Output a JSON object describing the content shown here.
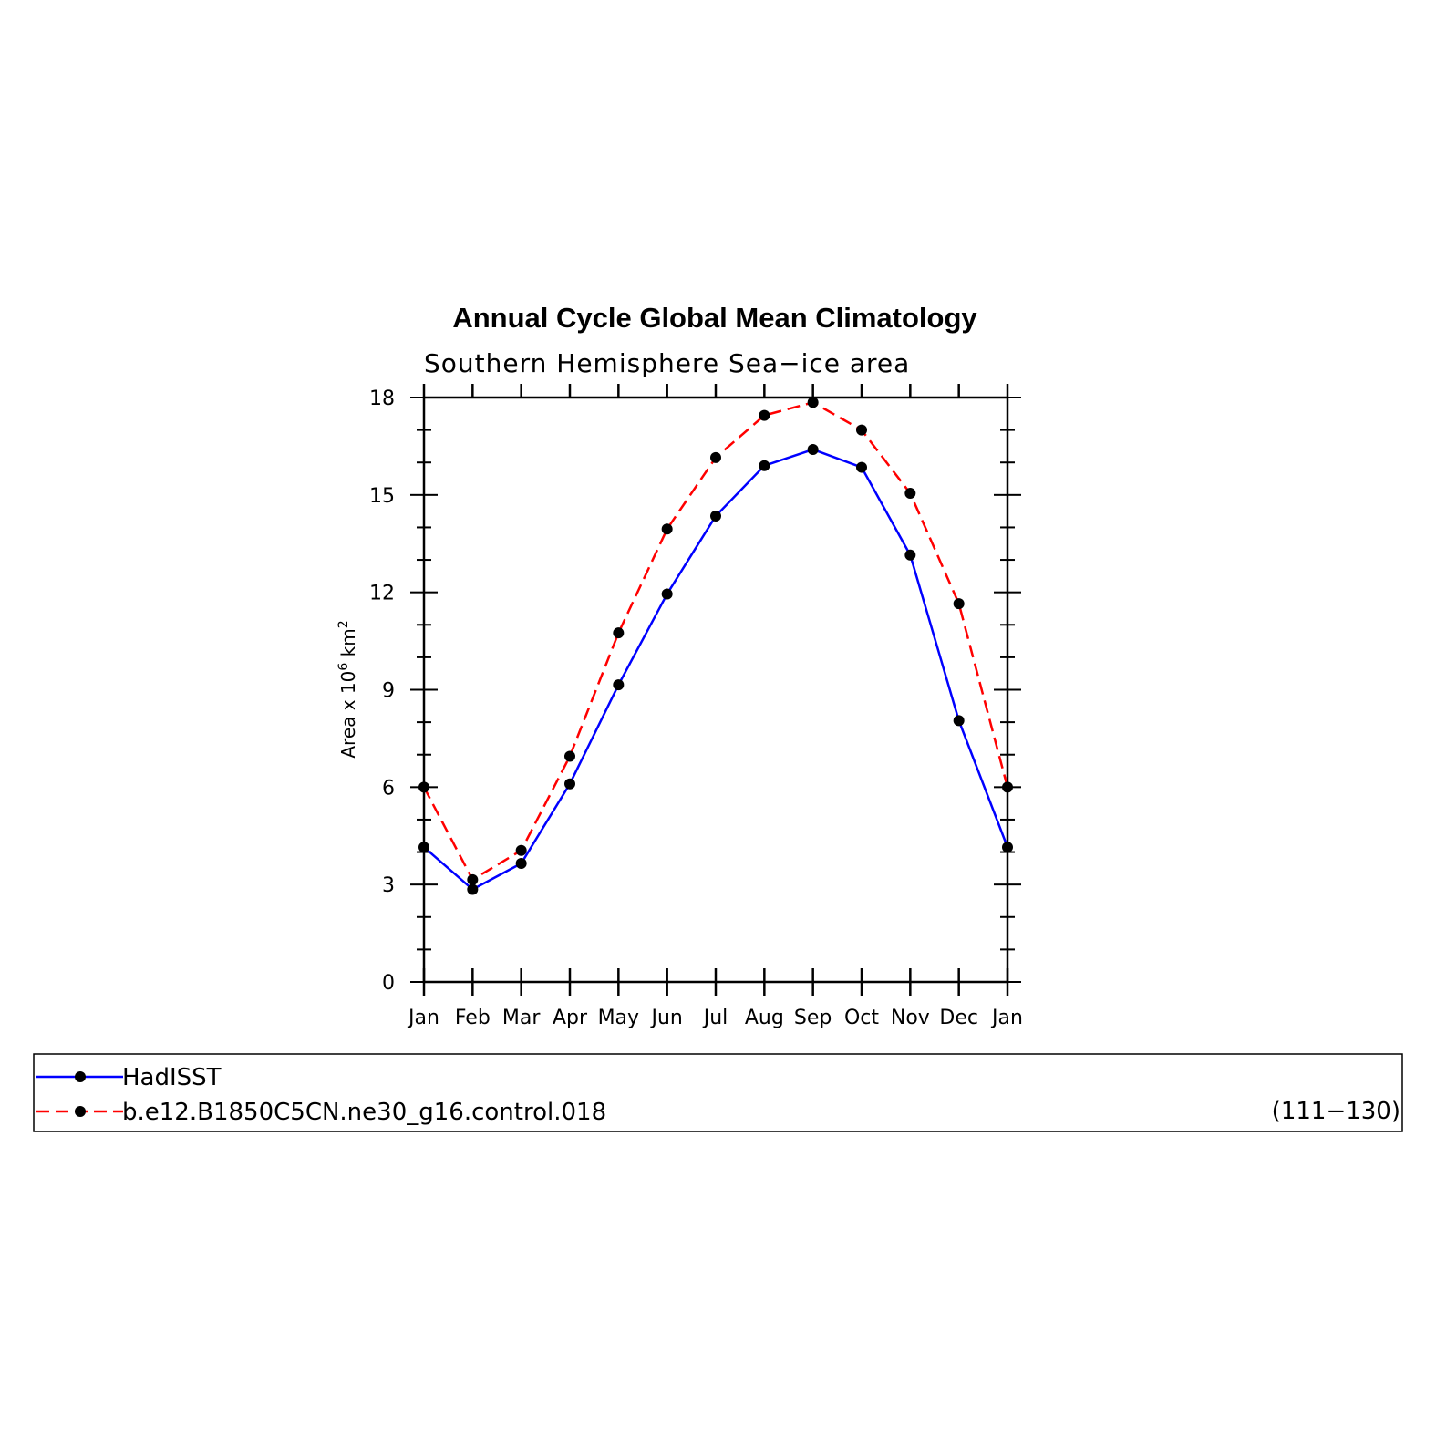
{
  "chart_data": {
    "type": "line",
    "title": "Annual Cycle Global Mean Climatology",
    "subtitle": "Southern Hemisphere Sea−ice area",
    "ylabel_parts": {
      "prefix": "Area x 10",
      "exp1": "6",
      "mid": " km",
      "exp2": "2"
    },
    "xlabel": "",
    "categories": [
      "Jan",
      "Feb",
      "Mar",
      "Apr",
      "May",
      "Jun",
      "Jul",
      "Aug",
      "Sep",
      "Oct",
      "Nov",
      "Dec",
      "Jan"
    ],
    "ylim": [
      0,
      18
    ],
    "yticks": [
      0,
      3,
      6,
      9,
      12,
      15,
      18
    ],
    "grid": false,
    "series": [
      {
        "name": "HadISST",
        "color": "#0000ff",
        "style": "solid",
        "values": [
          4.15,
          2.85,
          3.65,
          6.1,
          9.15,
          11.95,
          14.35,
          15.9,
          16.4,
          15.85,
          13.15,
          8.05,
          4.15
        ]
      },
      {
        "name": "b.e12.B1850C5CN.ne30_g16.control.018",
        "color": "#ff0000",
        "style": "dashed",
        "values": [
          6.0,
          3.15,
          4.05,
          6.95,
          10.75,
          13.95,
          16.15,
          17.45,
          17.85,
          17.0,
          15.05,
          11.65,
          6.0
        ]
      }
    ],
    "legend": {
      "placement": "bottom",
      "note": "(111−130)"
    }
  }
}
